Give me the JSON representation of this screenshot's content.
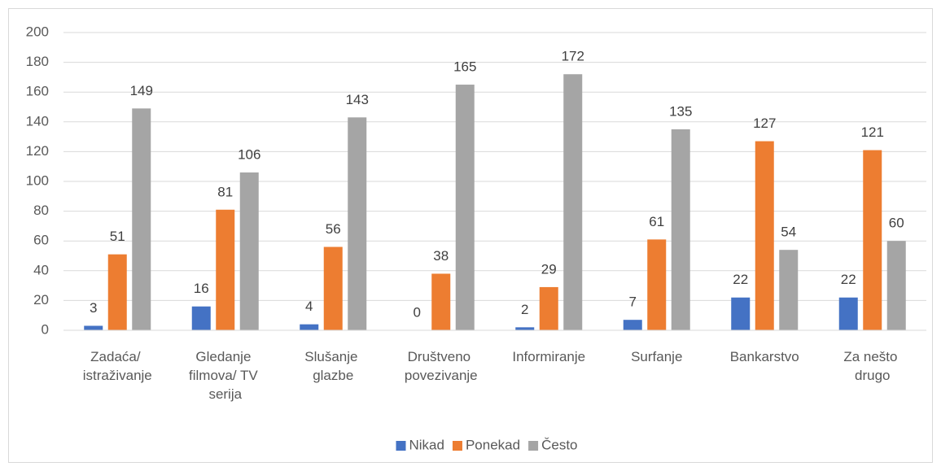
{
  "chart_data": {
    "type": "bar",
    "categories": [
      "Zadaća/ istraživanje",
      "Gledanje filmova/ TV serija",
      "Slušanje glazbe",
      "Društveno povezivanje",
      "Informiranje",
      "Surfanje",
      "Bankarstvo",
      "Za nešto drugo"
    ],
    "series": [
      {
        "name": "Nikad",
        "color": "#4472c4",
        "values": [
          3,
          16,
          4,
          0,
          2,
          7,
          22,
          22
        ]
      },
      {
        "name": "Ponekad",
        "color": "#ed7d31",
        "values": [
          51,
          81,
          56,
          38,
          29,
          61,
          127,
          121
        ]
      },
      {
        "name": "Često",
        "color": "#a5a5a5",
        "values": [
          149,
          106,
          143,
          165,
          172,
          135,
          54,
          60
        ]
      }
    ],
    "ylim": [
      0,
      200
    ],
    "yticks": [
      0,
      20,
      40,
      60,
      80,
      100,
      120,
      140,
      160,
      180,
      200
    ],
    "grid": true,
    "legend": "bottom"
  }
}
